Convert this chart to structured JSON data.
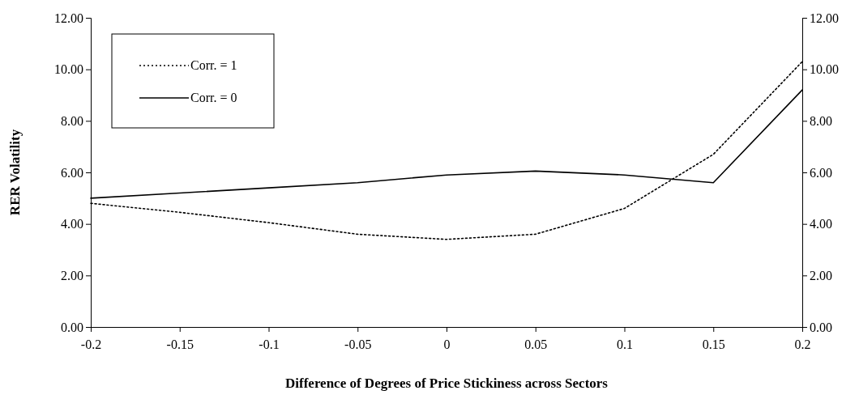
{
  "chart_data": {
    "type": "line",
    "xlabel": "Difference of Degrees of Price Stickiness across Sectors",
    "ylabel": "RER Volatility",
    "x": [
      -0.2,
      -0.15,
      -0.1,
      -0.05,
      0,
      0.05,
      0.1,
      0.15,
      0.2
    ],
    "series": [
      {
        "name": "Corr. = 1",
        "color": "#000000",
        "line_style": "dotted",
        "values": [
          4.8,
          4.45,
          4.05,
          3.6,
          3.4,
          3.6,
          4.6,
          6.7,
          10.3
        ]
      },
      {
        "name": "Corr. = 0",
        "color": "#000000",
        "line_style": "solid",
        "values": [
          5.0,
          5.2,
          5.4,
          5.6,
          5.9,
          6.05,
          5.9,
          5.6,
          9.2
        ]
      }
    ],
    "xlim": [
      -0.2,
      0.2
    ],
    "xticks": [
      -0.2,
      -0.15,
      -0.1,
      -0.05,
      0,
      0.05,
      0.1,
      0.15,
      0.2
    ],
    "ylim": [
      0,
      12
    ],
    "yticks": [
      {
        "value": 0,
        "label": "0.00"
      },
      {
        "value": 2,
        "label": "2.00"
      },
      {
        "value": 4,
        "label": "4.00"
      },
      {
        "value": 6,
        "label": "6.00"
      },
      {
        "value": 8,
        "label": "8.00"
      },
      {
        "value": 10,
        "label": "10.00"
      },
      {
        "value": 12,
        "label": "12.00"
      }
    ],
    "y2lim": [
      0,
      12
    ],
    "y2ticks": [
      {
        "value": 0,
        "label": "0.00"
      },
      {
        "value": 2,
        "label": "2.00"
      },
      {
        "value": 4,
        "label": "4.00"
      },
      {
        "value": 6,
        "label": "6.00"
      },
      {
        "value": 8,
        "label": "8.00"
      },
      {
        "value": 10,
        "label": "10.00"
      },
      {
        "value": 12,
        "label": "12.00"
      }
    ],
    "legend": "top left",
    "grid": false,
    "marker": "none"
  }
}
